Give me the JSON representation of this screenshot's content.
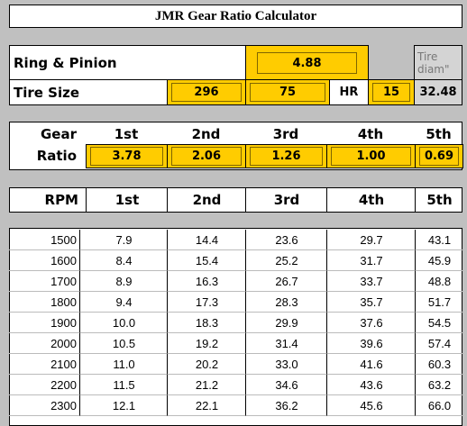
{
  "title": "JMR Gear Ratio Calculator",
  "ring_pinion": {
    "label": "Ring & Pinion",
    "value": "4.88"
  },
  "tire": {
    "label": "Tire Size",
    "width": "296",
    "aspect": "75",
    "rating": "HR",
    "rim": "15",
    "diam_label": "Tire diam\"",
    "diam": "32.48"
  },
  "gears": {
    "label_top": "Gear",
    "label_bottom": "Ratio",
    "names": [
      "1st",
      "2nd",
      "3rd",
      "4th",
      "5th"
    ],
    "ratios": [
      "3.78",
      "2.06",
      "1.26",
      "1.00",
      "0.69"
    ]
  },
  "rpm_table": {
    "header": [
      "RPM",
      "1st",
      "2nd",
      "3rd",
      "4th",
      "5th"
    ],
    "rows": [
      [
        "1500",
        "7.9",
        "14.4",
        "23.6",
        "29.7",
        "43.1"
      ],
      [
        "1600",
        "8.4",
        "15.4",
        "25.2",
        "31.7",
        "45.9"
      ],
      [
        "1700",
        "8.9",
        "16.3",
        "26.7",
        "33.7",
        "48.8"
      ],
      [
        "1800",
        "9.4",
        "17.3",
        "28.3",
        "35.7",
        "51.7"
      ],
      [
        "1900",
        "10.0",
        "18.3",
        "29.9",
        "37.6",
        "54.5"
      ],
      [
        "2000",
        "10.5",
        "19.2",
        "31.4",
        "39.6",
        "57.4"
      ],
      [
        "2100",
        "11.0",
        "20.2",
        "33.0",
        "41.6",
        "60.3"
      ],
      [
        "2200",
        "11.5",
        "21.2",
        "34.6",
        "43.6",
        "63.2"
      ],
      [
        "2300",
        "12.1",
        "22.1",
        "36.2",
        "45.6",
        "66.0"
      ]
    ]
  }
}
